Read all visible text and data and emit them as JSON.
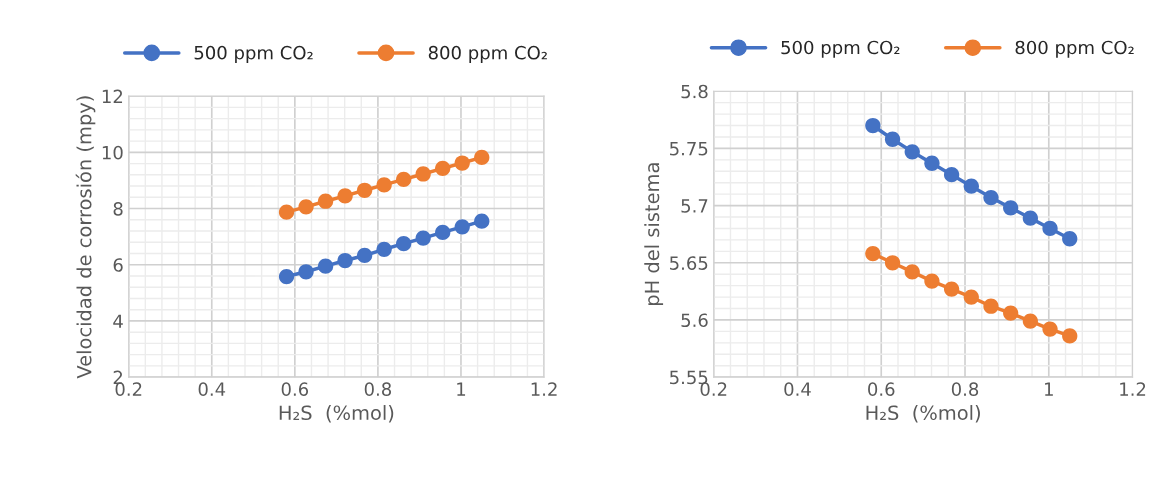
{
  "chart_data": [
    {
      "type": "line",
      "xlabel": "H₂S  (%mol)",
      "ylabel": "Velocidad de corrosión (mpy)",
      "x": [
        0.58,
        0.627,
        0.674,
        0.721,
        0.768,
        0.815,
        0.862,
        0.909,
        0.956,
        1.003,
        1.05
      ],
      "series": [
        {
          "name": "500 ppm CO₂",
          "color": "#4472c4",
          "values": [
            5.58,
            5.75,
            5.95,
            6.15,
            6.33,
            6.55,
            6.75,
            6.95,
            7.15,
            7.35,
            7.55
          ]
        },
        {
          "name": "800 ppm CO₂",
          "color": "#ed7d31",
          "values": [
            7.87,
            8.06,
            8.26,
            8.45,
            8.65,
            8.84,
            9.04,
            9.23,
            9.43,
            9.62,
            9.82
          ]
        }
      ],
      "xlim": [
        0.2,
        1.2
      ],
      "xticks": [
        0.2,
        0.4,
        0.6,
        0.8,
        1,
        1.2
      ],
      "ylim": [
        2,
        12
      ],
      "yticks": [
        2,
        4,
        6,
        8,
        10,
        12
      ],
      "grid": true,
      "legend": "top",
      "marker": "circle",
      "line_style": "solid"
    },
    {
      "type": "line",
      "xlabel": "H₂S  (%mol)",
      "ylabel": "pH del sistema",
      "x": [
        0.58,
        0.627,
        0.674,
        0.721,
        0.768,
        0.815,
        0.862,
        0.909,
        0.956,
        1.003,
        1.05
      ],
      "series": [
        {
          "name": "500 ppm CO₂",
          "color": "#4472c4",
          "values": [
            5.77,
            5.758,
            5.747,
            5.737,
            5.727,
            5.717,
            5.707,
            5.698,
            5.689,
            5.68,
            5.671
          ]
        },
        {
          "name": "800 ppm CO₂",
          "color": "#ed7d31",
          "values": [
            5.658,
            5.65,
            5.642,
            5.634,
            5.627,
            5.62,
            5.612,
            5.606,
            5.599,
            5.592,
            5.586
          ]
        }
      ],
      "xlim": [
        0.2,
        1.2
      ],
      "xticks": [
        0.2,
        0.4,
        0.6,
        0.8,
        1,
        1.2
      ],
      "ylim": [
        5.55,
        5.8
      ],
      "yticks": [
        5.55,
        5.6,
        5.65,
        5.7,
        5.75,
        5.8
      ],
      "grid": true,
      "legend": "top",
      "marker": "circle",
      "line_style": "solid"
    }
  ]
}
